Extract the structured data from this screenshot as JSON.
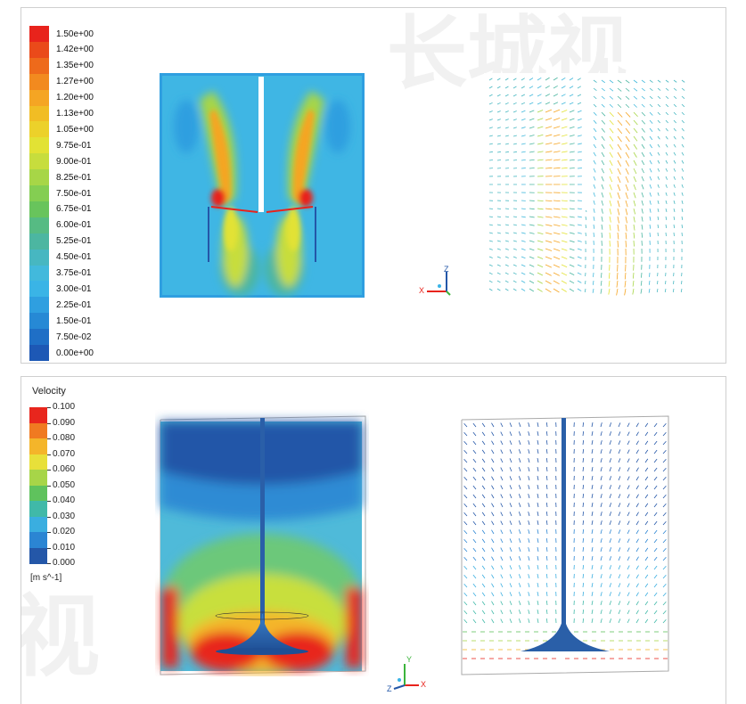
{
  "panel1": {
    "legend": {
      "colors": [
        "#e8231c",
        "#ea4a1a",
        "#ee6a1b",
        "#f28a1f",
        "#f5a523",
        "#f1bd24",
        "#ecd12a",
        "#e2e234",
        "#c7dd3d",
        "#a7d647",
        "#84ce52",
        "#68c45c",
        "#56bb83",
        "#4cb6a1",
        "#47b7c1",
        "#42b9dc",
        "#3ab4e6",
        "#2f9fe0",
        "#2689d5",
        "#1f6fc6",
        "#1d58b5"
      ],
      "labels": [
        "1.50e+00",
        "1.42e+00",
        "1.35e+00",
        "1.27e+00",
        "1.20e+00",
        "1.13e+00",
        "1.05e+00",
        "9.75e-01",
        "9.00e-01",
        "8.25e-01",
        "7.50e-01",
        "6.75e-01",
        "6.00e-01",
        "5.25e-01",
        "4.50e-01",
        "3.75e-01",
        "3.00e-01",
        "2.25e-01",
        "1.50e-01",
        "7.50e-02",
        "0.00e+00"
      ]
    },
    "axis_labels": {
      "x": "X",
      "y": "Y",
      "z": "Z"
    }
  },
  "panel2": {
    "legend": {
      "title": "Velocity",
      "unit": "[m s^-1]",
      "colors": [
        "#e8261d",
        "#f07a21",
        "#f4b52a",
        "#e8e03a",
        "#a7d548",
        "#5fc25d",
        "#40b9a8",
        "#3aaee0",
        "#2b85d3",
        "#2457a8"
      ],
      "labels": [
        "0.100",
        "0.090",
        "0.080",
        "0.070",
        "0.060",
        "0.050",
        "0.040",
        "0.030",
        "0.020",
        "0.010",
        "0.000"
      ]
    },
    "axis_labels": {
      "x": "X",
      "y": "Y",
      "z": "Z"
    }
  },
  "watermark": {
    "text1": "长城视",
    "text2": "视"
  }
}
